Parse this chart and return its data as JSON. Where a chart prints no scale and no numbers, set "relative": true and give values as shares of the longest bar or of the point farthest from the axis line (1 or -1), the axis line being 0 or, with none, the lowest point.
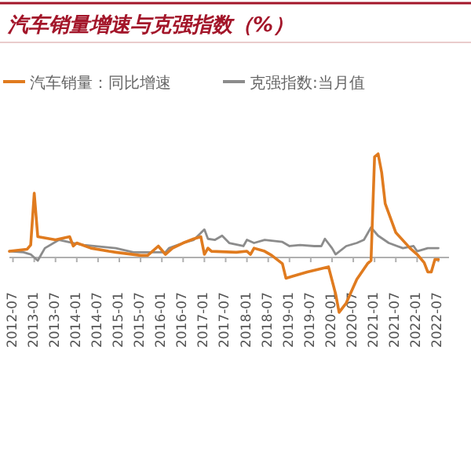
{
  "chart_data": {
    "type": "line",
    "title": "汽车销量增速与克强指数（%）",
    "relative": true,
    "legend": "top",
    "xlim": [
      "2012-06",
      "2022-10"
    ],
    "xticks": [
      "2012-07",
      "2013-01",
      "2013-07",
      "2014-01",
      "2014-07",
      "2015-01",
      "2015-07",
      "2016-01",
      "2016-07",
      "2017-01",
      "2017-07",
      "2018-01",
      "2018-07",
      "2019-01",
      "2019-07",
      "2020-01",
      "2020-07",
      "2021-01",
      "2021-07",
      "2022-01",
      "2022-07"
    ],
    "series": [
      {
        "name": "汽车销量：同比增速",
        "color": "#e07b1f",
        "x": [
          "2012-06",
          "2012-11",
          "2012-12",
          "2013-01",
          "2013-02",
          "2013-07",
          "2013-11",
          "2013-12",
          "2014-01",
          "2014-05",
          "2014-10",
          "2014-12",
          "2015-07",
          "2015-09",
          "2015-12",
          "2016-02",
          "2016-04",
          "2016-07",
          "2016-10",
          "2016-12",
          "2017-01",
          "2017-02",
          "2017-03",
          "2017-10",
          "2018-01",
          "2018-02",
          "2018-03",
          "2018-06",
          "2018-08",
          "2018-11",
          "2018-12",
          "2019-02",
          "2019-06",
          "2019-12",
          "2020-02",
          "2020-03",
          "2020-05",
          "2020-08",
          "2020-11",
          "2020-12",
          "2021-01",
          "2021-02",
          "2021-03",
          "2021-04",
          "2021-07",
          "2021-11",
          "2022-01",
          "2022-03",
          "2022-04",
          "2022-05",
          "2022-06",
          "2022-07"
        ],
        "values": [
          0.06,
          0.08,
          0.12,
          0.62,
          0.2,
          0.17,
          0.2,
          0.11,
          0.14,
          0.09,
          0.06,
          0.05,
          0.02,
          0.02,
          0.11,
          0.03,
          0.09,
          0.14,
          0.18,
          0.2,
          0.03,
          0.09,
          0.06,
          0.05,
          0.06,
          0.03,
          0.09,
          0.06,
          0.02,
          -0.06,
          -0.2,
          -0.18,
          -0.14,
          -0.09,
          -0.35,
          -0.53,
          -0.44,
          -0.21,
          -0.06,
          -0.03,
          0.97,
          1.0,
          0.82,
          0.52,
          0.24,
          0.09,
          0.03,
          -0.05,
          -0.14,
          -0.14,
          -0.02,
          -0.02
        ]
      },
      {
        "name": "克强指数:当月值",
        "color": "#8c8c8c",
        "x": [
          "2012-06",
          "2012-10",
          "2012-12",
          "2013-02",
          "2013-03",
          "2013-04",
          "2013-08",
          "2013-12",
          "2014-03",
          "2014-12",
          "2015-05",
          "2015-09",
          "2016-02",
          "2016-03",
          "2016-07",
          "2016-10",
          "2017-01",
          "2017-02",
          "2017-04",
          "2017-06",
          "2017-08",
          "2017-12",
          "2018-01",
          "2018-03",
          "2018-06",
          "2018-11",
          "2019-01",
          "2019-04",
          "2019-08",
          "2019-10",
          "2019-11",
          "2020-01",
          "2020-02",
          "2020-05",
          "2020-08",
          "2020-10",
          "2020-12",
          "2021-02",
          "2021-05",
          "2021-09",
          "2021-12",
          "2022-01",
          "2022-04",
          "2022-07"
        ],
        "values": [
          0.06,
          0.05,
          0.03,
          -0.03,
          0.03,
          0.09,
          0.17,
          0.14,
          0.12,
          0.09,
          0.05,
          0.05,
          0.05,
          0.09,
          0.14,
          0.17,
          0.27,
          0.18,
          0.17,
          0.21,
          0.14,
          0.11,
          0.17,
          0.14,
          0.17,
          0.15,
          0.11,
          0.12,
          0.11,
          0.11,
          0.18,
          0.09,
          0.03,
          0.11,
          0.14,
          0.17,
          0.29,
          0.21,
          0.14,
          0.09,
          0.11,
          0.06,
          0.09,
          0.09
        ]
      }
    ]
  }
}
